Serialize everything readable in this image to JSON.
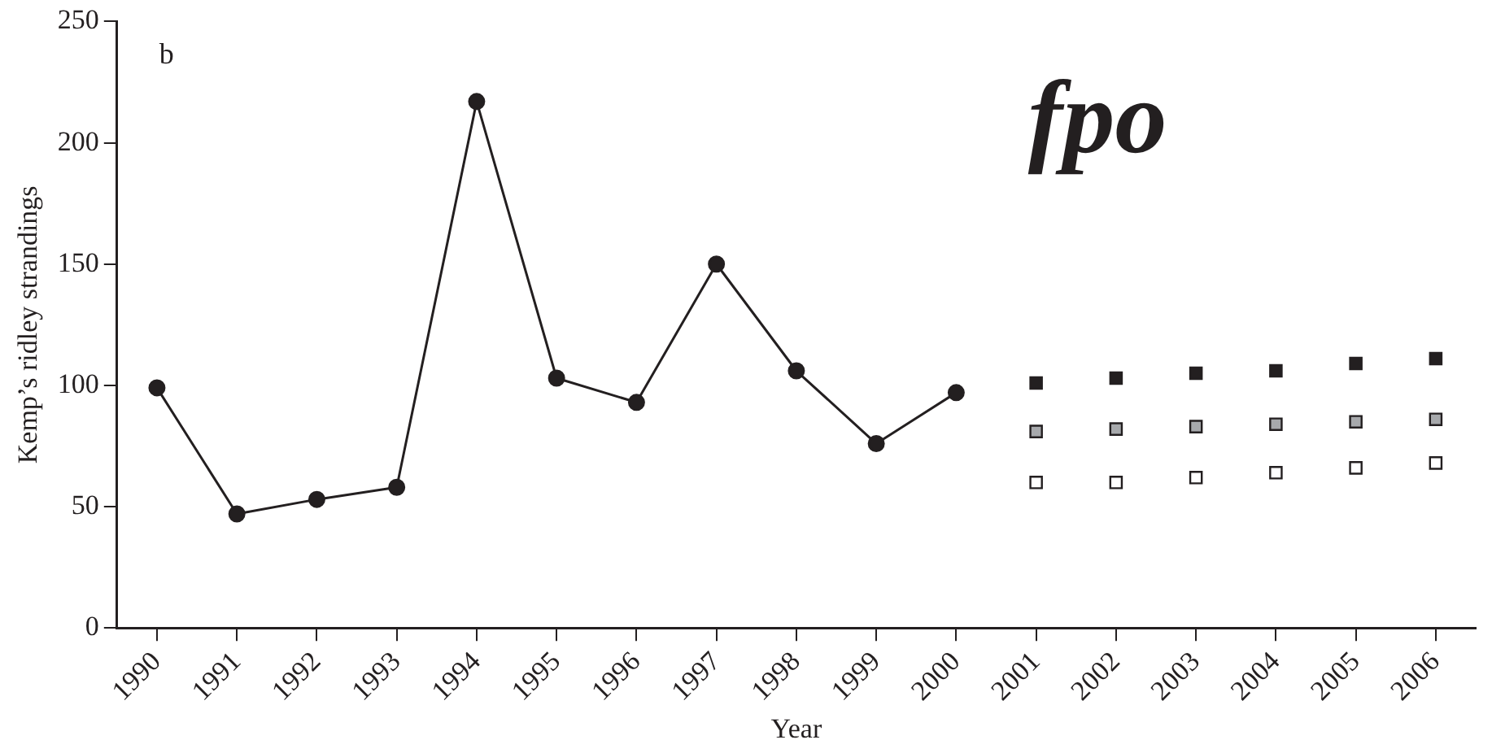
{
  "chart_data": {
    "type": "line",
    "categories": [
      "1990",
      "1991",
      "1992",
      "1993",
      "1994",
      "1995",
      "1996",
      "1997",
      "1998",
      "1999",
      "2000",
      "2001",
      "2002",
      "2003",
      "2004",
      "2005",
      "2006"
    ],
    "series": [
      {
        "type": "line",
        "color": "#231f20",
        "marker": "circle",
        "values": [
          99,
          47,
          53,
          58,
          217,
          103,
          93,
          150,
          106,
          76,
          97,
          null,
          null,
          null,
          null,
          null,
          null
        ]
      },
      {
        "type": "scatter",
        "color": "#231f20",
        "marker": "square",
        "values": [
          null,
          null,
          null,
          null,
          null,
          null,
          null,
          null,
          null,
          null,
          null,
          101,
          103,
          105,
          106,
          109,
          111
        ]
      },
      {
        "type": "scatter",
        "color": "#a7a9ac",
        "marker": "square",
        "values": [
          null,
          null,
          null,
          null,
          null,
          null,
          null,
          null,
          null,
          null,
          null,
          81,
          82,
          83,
          84,
          85,
          86
        ]
      },
      {
        "type": "scatter",
        "color": "#ffffff",
        "marker": "square",
        "values": [
          null,
          null,
          null,
          null,
          null,
          null,
          null,
          null,
          null,
          null,
          null,
          60,
          60,
          62,
          64,
          66,
          68
        ]
      }
    ],
    "xlabel": "Year",
    "ylabel": "Kemp’s ridley strandings",
    "ylim": [
      0,
      250
    ],
    "yticks": [
      0,
      50,
      100,
      150,
      200,
      250
    ],
    "annotations": [
      "b",
      "fpo"
    ],
    "grid": false,
    "legend": false
  }
}
